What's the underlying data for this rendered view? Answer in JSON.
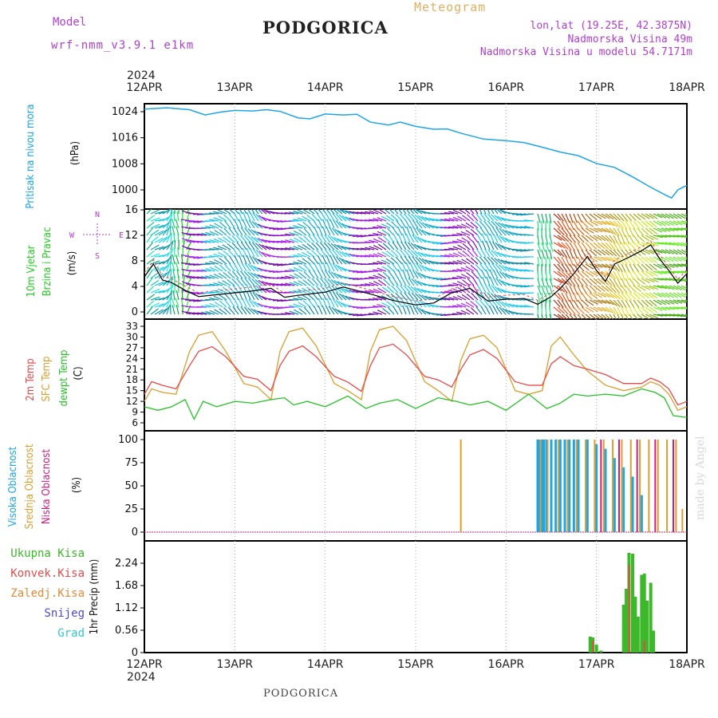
{
  "header": {
    "model_label": "Model",
    "model_name": "wrf-nmm_v3.9.1 e1km",
    "title": "PODGORICA",
    "meteogram": "Meteogram",
    "lonlat": "lon,lat (19.25E, 42.3875N)",
    "elevation": "Nadmorska Visina 49m",
    "model_elevation": "Nadmorska Visina u modelu 54.7171m",
    "watermark": "made by Angel",
    "footer": "PODGORICA",
    "year": "2024"
  },
  "colors": {
    "pressure": "#1ea5e6",
    "wind": "#1fcf1f",
    "temp2m": "#e84a4a",
    "sfc": "#d9a030",
    "dewpt": "#26c226",
    "high_cloud": "#1ea5e6",
    "mid_cloud": "#d9a030",
    "low_cloud": "#cc2080",
    "total_precip": "#3cb82a",
    "conv_precip": "#e84a4a",
    "frz_precip": "#e88a3a",
    "snow": "#4a4ad8",
    "hail": "#30c8c8",
    "purple_text": "#b040d0"
  },
  "chart_data": [
    {
      "type": "line",
      "panel": "pressure",
      "x_labels": [
        "12APR",
        "13APR",
        "14APR",
        "15APR",
        "16APR",
        "17APR",
        "18APR"
      ],
      "ylabel_main": "Pritisak na nivou mora",
      "unit": "(hPa)",
      "yticks": [
        "1000",
        "1008",
        "1016",
        "1024"
      ],
      "ylim": [
        996,
        1028
      ],
      "series": [
        {
          "x": [
            0,
            0.25,
            0.5,
            0.67,
            0.85,
            1.0,
            1.2,
            1.35,
            1.5,
            1.7,
            1.83,
            2.0,
            2.2,
            2.35,
            2.5,
            2.7,
            2.83,
            3.0,
            3.2,
            3.35,
            3.5,
            3.75,
            4.0,
            4.2,
            4.4,
            4.6,
            4.8,
            5.0,
            5.2,
            5.4,
            5.6,
            5.75,
            5.83,
            5.9,
            6.0
          ],
          "values": [
            1024.8,
            1025.2,
            1024.6,
            1023.0,
            1023.9,
            1024.4,
            1024.2,
            1024.6,
            1024.1,
            1022.1,
            1021.8,
            1023.3,
            1023.0,
            1023.2,
            1020.8,
            1019.9,
            1020.8,
            1019.5,
            1018.6,
            1018.7,
            1017.4,
            1015.6,
            1015.1,
            1014.5,
            1013.1,
            1011.6,
            1010.5,
            1008.1,
            1006.9,
            1004.0,
            1000.8,
            998.6,
            997.5,
            1000.0,
            1001.4
          ]
        }
      ]
    },
    {
      "type": "line",
      "panel": "wind",
      "ylabel_main": "10m Vjetar",
      "ylabel_sub": "Brzina i Pravac",
      "unit": "(m/s)",
      "compass": [
        "N",
        "E",
        "S",
        "W"
      ],
      "yticks": [
        "0",
        "4",
        "8",
        "12",
        "16"
      ],
      "ylim": [
        -1,
        16
      ],
      "series": [
        {
          "name": "speed",
          "x": [
            0,
            0.1,
            0.2,
            0.3,
            0.45,
            0.6,
            0.8,
            1.0,
            1.2,
            1.4,
            1.55,
            1.7,
            2.0,
            2.2,
            2.5,
            2.75,
            3.0,
            3.2,
            3.4,
            3.6,
            3.8,
            4.0,
            4.2,
            4.35,
            4.5,
            4.6,
            4.75,
            4.9,
            5.0,
            5.1,
            5.2,
            5.35,
            5.5,
            5.6,
            5.7,
            5.8,
            5.9,
            6.0
          ],
          "values": [
            5.5,
            7.5,
            5.0,
            4.6,
            3.4,
            2.4,
            2.7,
            3.0,
            3.3,
            3.7,
            2.3,
            2.6,
            3.1,
            3.9,
            2.8,
            1.8,
            1.1,
            1.4,
            3.0,
            3.7,
            1.7,
            2.0,
            2.1,
            1.2,
            2.4,
            3.7,
            6.0,
            8.7,
            6.5,
            4.8,
            7.5,
            8.5,
            9.6,
            10.5,
            8.3,
            6.5,
            4.5,
            6.0
          ]
        }
      ]
    },
    {
      "type": "line",
      "panel": "temperature",
      "legend": [
        "2m Temp",
        "SFC Temp",
        "dewpt Temp"
      ],
      "unit": "(C)",
      "yticks": [
        "6",
        "9",
        "12",
        "15",
        "18",
        "21",
        "24",
        "27",
        "30",
        "33"
      ],
      "ylim": [
        5,
        34
      ],
      "series": [
        {
          "name": "2m Temp",
          "x": [
            0,
            0.08,
            0.2,
            0.35,
            0.5,
            0.6,
            0.75,
            0.9,
            1.1,
            1.25,
            1.4,
            1.5,
            1.6,
            1.75,
            1.9,
            2.1,
            2.25,
            2.4,
            2.5,
            2.6,
            2.75,
            2.9,
            3.1,
            3.25,
            3.4,
            3.5,
            3.6,
            3.75,
            3.9,
            4.1,
            4.25,
            4.4,
            4.5,
            4.6,
            4.75,
            4.9,
            5.1,
            5.3,
            5.5,
            5.6,
            5.7,
            5.8,
            5.9,
            6.0
          ],
          "values": [
            14,
            17.5,
            16.5,
            15.5,
            22,
            26,
            27.3,
            24.5,
            19,
            18.2,
            15,
            22,
            26,
            27.5,
            24.5,
            19,
            17.4,
            14.8,
            22,
            27,
            28,
            25,
            19,
            18,
            16,
            21,
            25,
            26.5,
            24,
            17.5,
            16.5,
            16.5,
            22.5,
            24.5,
            22,
            21,
            19.5,
            17,
            17,
            18.5,
            17.5,
            15.5,
            11,
            12
          ]
        },
        {
          "name": "SFC Temp",
          "x": [
            0,
            0.08,
            0.2,
            0.35,
            0.5,
            0.6,
            0.75,
            0.9,
            1.1,
            1.25,
            1.4,
            1.5,
            1.6,
            1.75,
            1.9,
            2.1,
            2.25,
            2.4,
            2.5,
            2.6,
            2.75,
            2.9,
            3.1,
            3.25,
            3.4,
            3.5,
            3.6,
            3.75,
            3.9,
            4.1,
            4.25,
            4.4,
            4.5,
            4.6,
            4.75,
            4.9,
            5.1,
            5.3,
            5.5,
            5.6,
            5.7,
            5.8,
            5.9,
            6.0
          ],
          "values": [
            12,
            15.5,
            14.5,
            14,
            26,
            30.5,
            31.5,
            26,
            17,
            16,
            12.5,
            26,
            31.5,
            32.5,
            27.5,
            17,
            15,
            12.5,
            26,
            32,
            33,
            29,
            17.5,
            15,
            12,
            23.5,
            29.5,
            30.5,
            27,
            15,
            14,
            15,
            27.5,
            30,
            25,
            20.5,
            16.5,
            15,
            16,
            17.5,
            16.5,
            14,
            9.5,
            10.5
          ]
        },
        {
          "name": "dewpt Temp",
          "x": [
            0,
            0.15,
            0.3,
            0.45,
            0.55,
            0.65,
            0.8,
            1.0,
            1.2,
            1.4,
            1.55,
            1.65,
            1.8,
            2.0,
            2.25,
            2.45,
            2.6,
            2.8,
            3.0,
            3.25,
            3.45,
            3.6,
            3.8,
            4.0,
            4.25,
            4.45,
            4.6,
            4.75,
            4.9,
            5.1,
            5.3,
            5.5,
            5.65,
            5.75,
            5.85,
            6.0
          ],
          "values": [
            10.5,
            9.5,
            10.5,
            12.5,
            7,
            12,
            10.5,
            12,
            11.5,
            12.5,
            13,
            11,
            12,
            10.5,
            13.5,
            10,
            11.5,
            12.5,
            10,
            13,
            12,
            11,
            12,
            9.5,
            14,
            10,
            11.5,
            14,
            13.5,
            14,
            13.5,
            15.5,
            14.5,
            13,
            8,
            7.5
          ]
        }
      ]
    },
    {
      "type": "bar",
      "panel": "cloud",
      "legend": [
        "Visoka Oblacnost",
        "Srednja Oblacnost",
        "Niska Oblacnost"
      ],
      "unit": "(%)",
      "yticks": [
        "0",
        "25",
        "50",
        "75",
        "100"
      ],
      "ylim": [
        0,
        100
      ],
      "series": [
        {
          "name": "Visoka Oblacnost",
          "x": [
            4.35,
            4.37,
            4.4,
            4.42,
            4.45,
            4.5,
            4.55,
            4.6,
            4.65,
            4.7,
            4.75,
            4.8,
            4.9,
            5.0,
            5.1,
            5.2,
            5.3,
            5.4,
            5.5
          ],
          "values": [
            100,
            100,
            100,
            100,
            100,
            100,
            100,
            100,
            100,
            100,
            100,
            100,
            100,
            95,
            90,
            80,
            70,
            60,
            40
          ]
        },
        {
          "name": "Srednja Oblacnost",
          "x": [
            3.5,
            4.38,
            4.46,
            4.58,
            4.68,
            4.78,
            4.88,
            4.98,
            5.08,
            5.18,
            5.28,
            5.38,
            5.48,
            5.58,
            5.68,
            5.78,
            5.88,
            5.95
          ],
          "values": [
            100,
            100,
            100,
            100,
            100,
            100,
            100,
            100,
            100,
            100,
            100,
            100,
            100,
            100,
            100,
            100,
            100,
            25
          ]
        },
        {
          "name": "Niska Oblacnost",
          "x": [
            5.05,
            5.25,
            5.45,
            5.65,
            5.85
          ],
          "values": [
            100,
            100,
            100,
            100,
            100
          ]
        }
      ]
    },
    {
      "type": "bar",
      "panel": "precip",
      "legend": [
        "Ukupna Kisa",
        "Konvek.Kisa",
        "Zaledj.Kisa",
        "Snijeg",
        "Grad"
      ],
      "unit": "1hr Precip (mm)",
      "yticks": [
        "0",
        "0.56",
        "1.12",
        "1.68",
        "2.24"
      ],
      "ylim": [
        0,
        2.8
      ],
      "series": [
        {
          "name": "Ukupna Kisa",
          "x": [
            4.93,
            4.96,
            5.0,
            5.05,
            5.3,
            5.33,
            5.36,
            5.4,
            5.43,
            5.46,
            5.5,
            5.53,
            5.56,
            5.6,
            5.63
          ],
          "values": [
            0.4,
            0.38,
            0.2,
            0.05,
            1.2,
            1.6,
            2.5,
            2.48,
            1.4,
            0.9,
            1.95,
            1.98,
            1.3,
            1.75,
            0.55
          ]
        },
        {
          "name": "Konvek.Kisa",
          "x": [
            4.96,
            5.36,
            5.53
          ],
          "values": [
            0.3,
            2.2,
            0.3
          ]
        }
      ]
    }
  ]
}
